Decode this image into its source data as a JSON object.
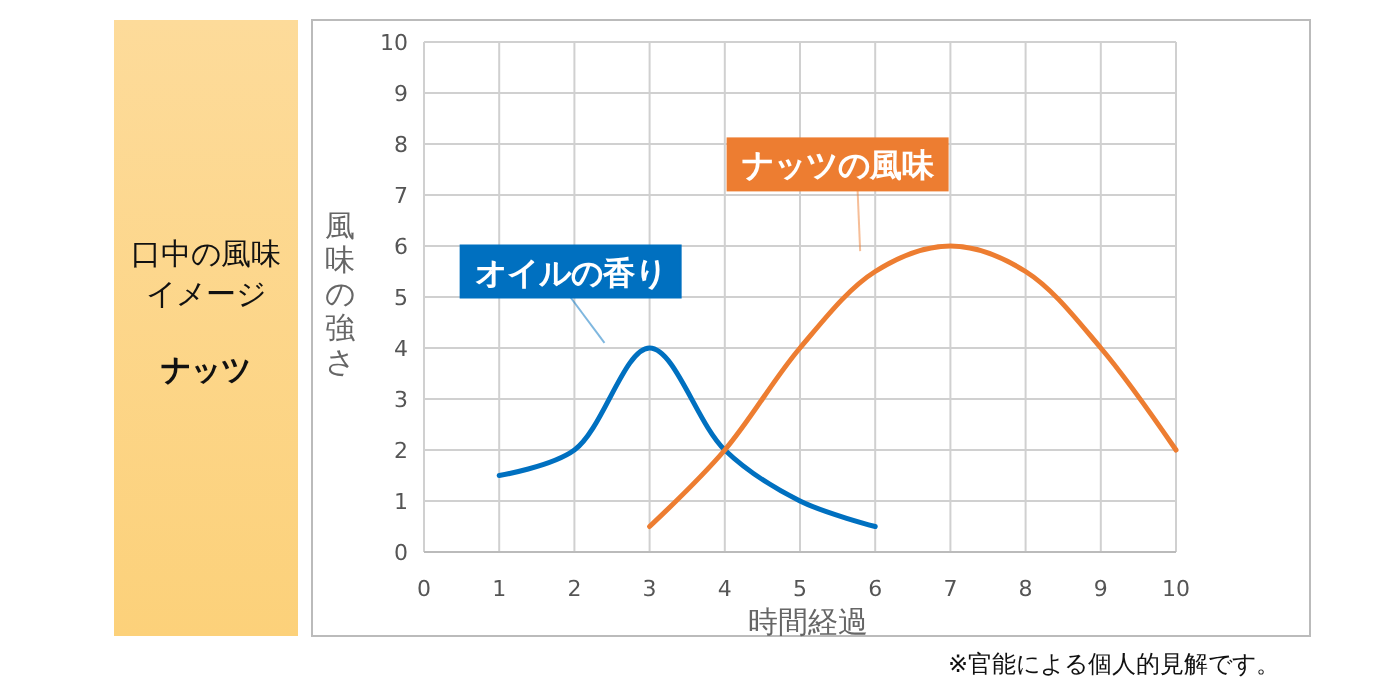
{
  "chart_data": {
    "type": "line",
    "title": "口中の風味イメージ",
    "subtitle": "ナッツ",
    "xlabel": "時間経過",
    "ylabel": "風味の強さ",
    "annotations": [
      "※官能による個人的見解です。"
    ],
    "xlim": [
      0,
      10
    ],
    "xticks": [
      0,
      1,
      2,
      3,
      4,
      5,
      6,
      7,
      8,
      9,
      10
    ],
    "ylim": [
      0,
      10
    ],
    "yticks": [
      0,
      1,
      2,
      3,
      4,
      5,
      6,
      7,
      8,
      9,
      10
    ],
    "grid": true,
    "legend": false,
    "marker": "none",
    "line_style": "solid",
    "series": [
      {
        "name": "オイルの香り",
        "color": "#0070c0",
        "x": [
          1,
          2,
          3,
          4,
          5,
          6
        ],
        "values": [
          1.5,
          2,
          4,
          2,
          1,
          0.5
        ]
      },
      {
        "name": "ナッツの風味",
        "color": "#ed7d31",
        "x": [
          3,
          4,
          5,
          6,
          7,
          8,
          9,
          10
        ],
        "values": [
          0.5,
          2,
          4,
          5.5,
          6,
          5.5,
          4,
          2
        ]
      }
    ]
  }
}
